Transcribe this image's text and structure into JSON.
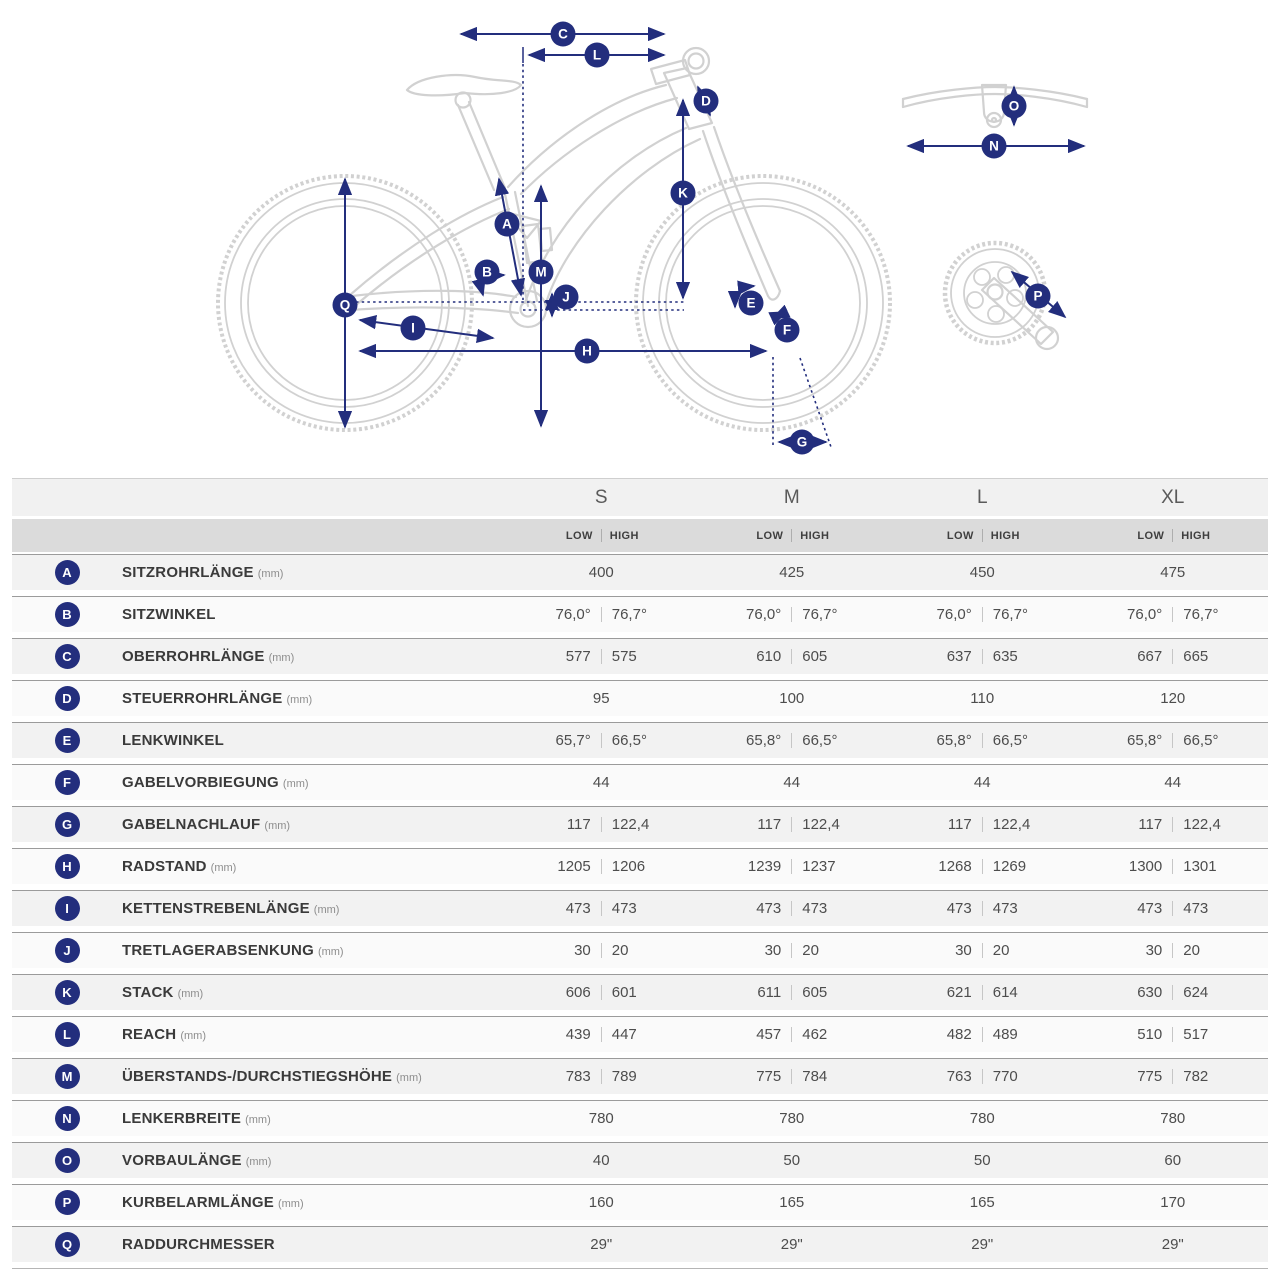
{
  "diagram": {
    "badges": [
      "C",
      "L",
      "D",
      "K",
      "A",
      "B",
      "M",
      "J",
      "Q",
      "I",
      "E",
      "F",
      "H",
      "G",
      "N",
      "O",
      "P"
    ]
  },
  "table": {
    "sizes": [
      "S",
      "M",
      "L",
      "XL"
    ],
    "sub_low": "LOW",
    "sub_high": "HIGH",
    "rows": [
      {
        "letter": "A",
        "label": "SITZROHRLÄNGE",
        "unit": "(mm)",
        "values": [
          [
            "400"
          ],
          [
            "425"
          ],
          [
            "450"
          ],
          [
            "475"
          ]
        ]
      },
      {
        "letter": "B",
        "label": "SITZWINKEL",
        "unit": "",
        "values": [
          [
            "76,0°",
            "76,7°"
          ],
          [
            "76,0°",
            "76,7°"
          ],
          [
            "76,0°",
            "76,7°"
          ],
          [
            "76,0°",
            "76,7°"
          ]
        ]
      },
      {
        "letter": "C",
        "label": "OBERROHRLÄNGE",
        "unit": "(mm)",
        "values": [
          [
            "577",
            "575"
          ],
          [
            "610",
            "605"
          ],
          [
            "637",
            "635"
          ],
          [
            "667",
            "665"
          ]
        ]
      },
      {
        "letter": "D",
        "label": "STEUERROHRLÄNGE",
        "unit": "(mm)",
        "values": [
          [
            "95"
          ],
          [
            "100"
          ],
          [
            "110"
          ],
          [
            "120"
          ]
        ]
      },
      {
        "letter": "E",
        "label": "LENKWINKEL",
        "unit": "",
        "values": [
          [
            "65,7°",
            "66,5°"
          ],
          [
            "65,8°",
            "66,5°"
          ],
          [
            "65,8°",
            "66,5°"
          ],
          [
            "65,8°",
            "66,5°"
          ]
        ]
      },
      {
        "letter": "F",
        "label": "GABELVORBIEGUNG",
        "unit": "(mm)",
        "values": [
          [
            "44"
          ],
          [
            "44"
          ],
          [
            "44"
          ],
          [
            "44"
          ]
        ]
      },
      {
        "letter": "G",
        "label": "GABELNACHLAUF",
        "unit": "(mm)",
        "values": [
          [
            "117",
            "122,4"
          ],
          [
            "117",
            "122,4"
          ],
          [
            "117",
            "122,4"
          ],
          [
            "117",
            "122,4"
          ]
        ]
      },
      {
        "letter": "H",
        "label": "RADSTAND",
        "unit": "(mm)",
        "values": [
          [
            "1205",
            "1206"
          ],
          [
            "1239",
            "1237"
          ],
          [
            "1268",
            "1269"
          ],
          [
            "1300",
            "1301"
          ]
        ]
      },
      {
        "letter": "I",
        "label": "KETTENSTREBENLÄNGE",
        "unit": "(mm)",
        "values": [
          [
            "473",
            "473"
          ],
          [
            "473",
            "473"
          ],
          [
            "473",
            "473"
          ],
          [
            "473",
            "473"
          ]
        ]
      },
      {
        "letter": "J",
        "label": "TRETLAGERABSENKUNG",
        "unit": "(mm)",
        "values": [
          [
            "30",
            "20"
          ],
          [
            "30",
            "20"
          ],
          [
            "30",
            "20"
          ],
          [
            "30",
            "20"
          ]
        ]
      },
      {
        "letter": "K",
        "label": "STACK",
        "unit": "(mm)",
        "values": [
          [
            "606",
            "601"
          ],
          [
            "611",
            "605"
          ],
          [
            "621",
            "614"
          ],
          [
            "630",
            "624"
          ]
        ]
      },
      {
        "letter": "L",
        "label": "REACH",
        "unit": "(mm)",
        "values": [
          [
            "439",
            "447"
          ],
          [
            "457",
            "462"
          ],
          [
            "482",
            "489"
          ],
          [
            "510",
            "517"
          ]
        ]
      },
      {
        "letter": "M",
        "label": "ÜBERSTANDS-/DURCHSTIEGSHÖHE",
        "unit": "(mm)",
        "values": [
          [
            "783",
            "789"
          ],
          [
            "775",
            "784"
          ],
          [
            "763",
            "770"
          ],
          [
            "775",
            "782"
          ]
        ]
      },
      {
        "letter": "N",
        "label": "LENKERBREITE",
        "unit": "(mm)",
        "values": [
          [
            "780"
          ],
          [
            "780"
          ],
          [
            "780"
          ],
          [
            "780"
          ]
        ]
      },
      {
        "letter": "O",
        "label": "VORBAULÄNGE",
        "unit": "(mm)",
        "values": [
          [
            "40"
          ],
          [
            "50"
          ],
          [
            "50"
          ],
          [
            "60"
          ]
        ]
      },
      {
        "letter": "P",
        "label": "KURBELARMLÄNGE",
        "unit": "(mm)",
        "values": [
          [
            "160"
          ],
          [
            "165"
          ],
          [
            "165"
          ],
          [
            "170"
          ]
        ]
      },
      {
        "letter": "Q",
        "label": "RADDURCHMESSER",
        "unit": "",
        "values": [
          [
            "29\""
          ],
          [
            "29\""
          ],
          [
            "29\""
          ],
          [
            "29\""
          ]
        ]
      }
    ]
  },
  "colors": {
    "accent_navy": "#232e7d",
    "bike_gray": "#d1d1d1"
  }
}
